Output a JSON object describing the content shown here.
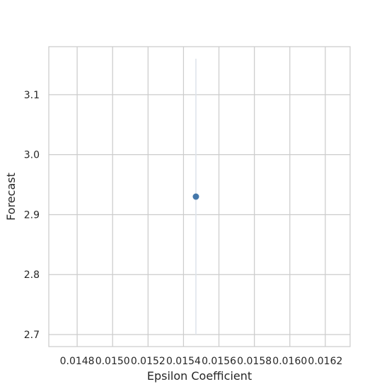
{
  "chart_data": {
    "type": "scatter",
    "xlabel": "Epsilon Coefficient",
    "ylabel": "Forecast",
    "x_ticks": [
      "0.0148",
      "0.0150",
      "0.0152",
      "0.0154",
      "0.0156",
      "0.0158",
      "0.0160",
      "0.0162"
    ],
    "y_ticks": [
      "2.7",
      "2.8",
      "2.9",
      "3.0",
      "3.1"
    ],
    "xlim": [
      0.01464,
      0.01634
    ],
    "ylim": [
      2.68,
      3.18
    ],
    "grid": true,
    "points": [
      {
        "x": 0.01547,
        "y": 2.93,
        "y_low": 2.7,
        "y_high": 3.16
      }
    ],
    "colors": {
      "point": "#4477aa",
      "errorbar": "#dde3ea",
      "grid": "#cccccc",
      "spine": "#cccccc"
    }
  }
}
